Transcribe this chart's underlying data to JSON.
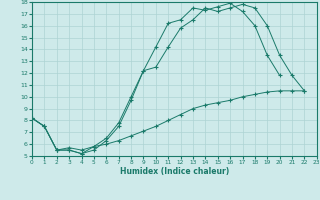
{
  "xlabel": "Humidex (Indice chaleur)",
  "bg_color": "#ceeaea",
  "line_color": "#1a7a6a",
  "grid_color": "#aed4d4",
  "xlim": [
    0,
    23
  ],
  "ylim": [
    5,
    18
  ],
  "xticks": [
    0,
    1,
    2,
    3,
    4,
    5,
    6,
    7,
    8,
    9,
    10,
    11,
    12,
    13,
    14,
    15,
    16,
    17,
    18,
    19,
    20,
    21,
    22,
    23
  ],
  "yticks": [
    5,
    6,
    7,
    8,
    9,
    10,
    11,
    12,
    13,
    14,
    15,
    16,
    17,
    18
  ],
  "line1_x": [
    0,
    1,
    2,
    3,
    4,
    5,
    6,
    7,
    8,
    9,
    10,
    11,
    12,
    13,
    14,
    15,
    16,
    17,
    18,
    19,
    20,
    21,
    22,
    23
  ],
  "line1_y": [
    8.2,
    7.5,
    5.5,
    5.5,
    5.2,
    5.5,
    6.3,
    7.5,
    9.7,
    12.2,
    12.5,
    14.2,
    15.8,
    16.5,
    17.5,
    17.2,
    17.5,
    17.8,
    17.5,
    16.0,
    13.5,
    11.8,
    10.5,
    null
  ],
  "line2_x": [
    0,
    1,
    2,
    3,
    4,
    5,
    6,
    7,
    8,
    9,
    10,
    11,
    12,
    13,
    14,
    15,
    16,
    17,
    18,
    19,
    20,
    21,
    22,
    23
  ],
  "line2_y": [
    8.2,
    7.5,
    5.5,
    5.5,
    5.2,
    5.8,
    6.5,
    7.8,
    10.0,
    12.2,
    14.2,
    16.2,
    16.5,
    17.5,
    17.3,
    17.6,
    17.9,
    17.2,
    16.0,
    13.5,
    11.8,
    null,
    null,
    null
  ],
  "line3_x": [
    0,
    1,
    2,
    3,
    4,
    5,
    6,
    7,
    8,
    9,
    10,
    11,
    12,
    13,
    14,
    15,
    16,
    17,
    18,
    19,
    20,
    21,
    22,
    23
  ],
  "line3_y": [
    8.2,
    7.5,
    5.5,
    5.7,
    5.5,
    5.8,
    6.0,
    6.3,
    6.7,
    7.1,
    7.5,
    8.0,
    8.5,
    9.0,
    9.3,
    9.5,
    9.7,
    10.0,
    10.2,
    10.4,
    10.5,
    10.5,
    10.5,
    null
  ]
}
